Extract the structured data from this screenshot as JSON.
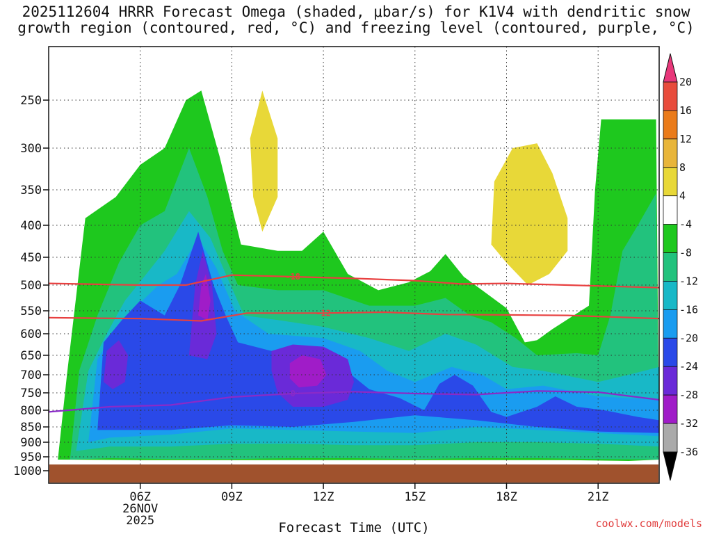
{
  "title": {
    "line1": "2025112604 HRRR Forecast Omega (shaded, μbar/s) for K1V4 with dendritic snow",
    "line2": "growth region (contoured, red, °C) and freezing level (contoured, purple, °C)"
  },
  "credit": "coolwx.com/models",
  "chart_data": {
    "type": "contour",
    "xlabel": "Forecast Time (UTC)",
    "ylabel": "",
    "x_ticks": [
      "06Z",
      "09Z",
      "12Z",
      "15Z",
      "18Z",
      "21Z"
    ],
    "x_tick_hours": [
      6,
      9,
      12,
      15,
      18,
      21
    ],
    "x_date_label": [
      "26NOV",
      "2025"
    ],
    "x_range_hours": [
      3,
      23
    ],
    "y_ticks": [
      250,
      300,
      350,
      400,
      450,
      500,
      550,
      600,
      650,
      700,
      750,
      800,
      850,
      900,
      950,
      1000
    ],
    "y_axis": "pressure (hPa), inverted",
    "y_range": [
      200,
      1010
    ],
    "surface_fill_color": "#a0522d",
    "grid": true,
    "colorbar": {
      "levels": [
        20,
        16,
        12,
        8,
        4,
        -4,
        -8,
        -12,
        -16,
        -20,
        -24,
        -28,
        -32,
        -36
      ],
      "colors": [
        "#e8377a",
        "#e84c3c",
        "#ea7b1a",
        "#e8b53a",
        "#e8d838",
        "#ffffff",
        "#1ec81e",
        "#22c27d",
        "#18b8c7",
        "#1a9cf0",
        "#2a49e8",
        "#6a2ad8",
        "#a01cc8",
        "#aaaaaa",
        "#000000"
      ]
    },
    "contours": [
      {
        "name": "-18",
        "color": "#e84040",
        "kind": "dendritic",
        "label": "-18",
        "points": [
          [
            3,
            497
          ],
          [
            6,
            500
          ],
          [
            7.5,
            500
          ],
          [
            9,
            482
          ],
          [
            11,
            485
          ],
          [
            13,
            488
          ],
          [
            15,
            492
          ],
          [
            16.5,
            498
          ],
          [
            18,
            497
          ],
          [
            20,
            500
          ],
          [
            23,
            505
          ]
        ]
      },
      {
        "name": "-12",
        "color": "#e84040",
        "kind": "dendritic",
        "label": "-12",
        "points": [
          [
            3,
            565
          ],
          [
            6,
            567
          ],
          [
            8,
            572
          ],
          [
            9.5,
            555
          ],
          [
            12,
            555
          ],
          [
            14,
            553
          ],
          [
            16,
            558
          ],
          [
            18,
            559
          ],
          [
            20,
            560
          ],
          [
            23,
            567
          ]
        ]
      },
      {
        "name": "0",
        "color": "#8a2ac8",
        "kind": "freezing",
        "label": "0",
        "points": [
          [
            3,
            805
          ],
          [
            5,
            790
          ],
          [
            7,
            785
          ],
          [
            9,
            762
          ],
          [
            11,
            752
          ],
          [
            13,
            747
          ],
          [
            15,
            752
          ],
          [
            17,
            755
          ],
          [
            19,
            745
          ],
          [
            21,
            748
          ],
          [
            23,
            770
          ]
        ]
      }
    ],
    "shaded_regions": [
      {
        "value": -4,
        "color": "#1ec81e",
        "points": [
          [
            3.3,
            960
          ],
          [
            3.6,
            700
          ],
          [
            4.2,
            390
          ],
          [
            5.2,
            360
          ],
          [
            6,
            320
          ],
          [
            6.8,
            300
          ],
          [
            7.5,
            250
          ],
          [
            8.0,
            240
          ],
          [
            8.6,
            310
          ],
          [
            9.3,
            430
          ],
          [
            10.5,
            440
          ],
          [
            11.3,
            440
          ],
          [
            12,
            410
          ],
          [
            12.8,
            480
          ],
          [
            13.8,
            510
          ],
          [
            14.8,
            495
          ],
          [
            15.5,
            475
          ],
          [
            16.0,
            445
          ],
          [
            16.6,
            485
          ],
          [
            17.2,
            510
          ],
          [
            18.0,
            545
          ],
          [
            18.6,
            620
          ],
          [
            19.0,
            615
          ],
          [
            19.5,
            590
          ],
          [
            20.2,
            560
          ],
          [
            20.7,
            540
          ],
          [
            20.9,
            350
          ],
          [
            21.1,
            270
          ],
          [
            22.0,
            270
          ],
          [
            22.9,
            270
          ],
          [
            23,
            960
          ],
          [
            22,
            965
          ],
          [
            20,
            962
          ],
          [
            18,
            962
          ],
          [
            16,
            962
          ],
          [
            14,
            962
          ],
          [
            12,
            962
          ],
          [
            10,
            962
          ],
          [
            8,
            962
          ],
          [
            6,
            962
          ]
        ]
      },
      {
        "value": -8,
        "color": "#22c27d",
        "points": [
          [
            3.7,
            960
          ],
          [
            4.0,
            690
          ],
          [
            4.6,
            560
          ],
          [
            5.3,
            460
          ],
          [
            6,
            400
          ],
          [
            6.8,
            380
          ],
          [
            7.6,
            300
          ],
          [
            8.2,
            360
          ],
          [
            8.7,
            440
          ],
          [
            9.2,
            500
          ],
          [
            10.5,
            510
          ],
          [
            12,
            510
          ],
          [
            13.5,
            540
          ],
          [
            15,
            540
          ],
          [
            16,
            525
          ],
          [
            16.8,
            560
          ],
          [
            17.5,
            575
          ],
          [
            18.3,
            610
          ],
          [
            19,
            650
          ],
          [
            20.3,
            645
          ],
          [
            21,
            650
          ],
          [
            21.4,
            560
          ],
          [
            21.8,
            440
          ],
          [
            22.3,
            400
          ],
          [
            22.9,
            355
          ],
          [
            23,
            960
          ],
          [
            21,
            958
          ],
          [
            19,
            955
          ],
          [
            17,
            955
          ],
          [
            15,
            958
          ],
          [
            13,
            955
          ],
          [
            11,
            955
          ],
          [
            9,
            958
          ],
          [
            7,
            958
          ],
          [
            5,
            955
          ]
        ]
      },
      {
        "value": -12,
        "color": "#18b8c7",
        "points": [
          [
            3.9,
            930
          ],
          [
            4.3,
            690
          ],
          [
            4.9,
            600
          ],
          [
            5.5,
            530
          ],
          [
            6.2,
            480
          ],
          [
            6.8,
            440
          ],
          [
            7.6,
            380
          ],
          [
            8.3,
            420
          ],
          [
            8.8,
            480
          ],
          [
            9.4,
            560
          ],
          [
            10.5,
            570
          ],
          [
            12,
            585
          ],
          [
            13.5,
            610
          ],
          [
            14.8,
            640
          ],
          [
            16.0,
            600
          ],
          [
            17,
            625
          ],
          [
            18.2,
            680
          ],
          [
            19.2,
            690
          ],
          [
            21,
            720
          ],
          [
            22,
            700
          ],
          [
            23,
            680
          ],
          [
            23,
            915
          ],
          [
            21,
            905
          ],
          [
            19,
            900
          ],
          [
            17,
            900
          ],
          [
            15,
            910
          ],
          [
            13,
            910
          ],
          [
            11,
            905
          ],
          [
            9,
            905
          ],
          [
            7,
            915
          ],
          [
            5,
            915
          ]
        ]
      },
      {
        "value": -16,
        "color": "#1a9cf0",
        "points": [
          [
            4.3,
            900
          ],
          [
            4.6,
            660
          ],
          [
            5.2,
            590
          ],
          [
            5.9,
            540
          ],
          [
            6.6,
            500
          ],
          [
            7.2,
            480
          ],
          [
            7.9,
            420
          ],
          [
            8.5,
            470
          ],
          [
            9.1,
            550
          ],
          [
            10.2,
            600
          ],
          [
            12.0,
            610
          ],
          [
            13.2,
            640
          ],
          [
            14.1,
            690
          ],
          [
            15.0,
            720
          ],
          [
            16.2,
            680
          ],
          [
            17.2,
            700
          ],
          [
            18,
            740
          ],
          [
            19.2,
            730
          ],
          [
            21,
            760
          ],
          [
            23,
            770
          ],
          [
            23,
            880
          ],
          [
            21,
            870
          ],
          [
            19,
            860
          ],
          [
            17,
            850
          ],
          [
            15,
            870
          ],
          [
            13,
            865
          ],
          [
            11,
            860
          ],
          [
            9,
            855
          ],
          [
            7,
            875
          ],
          [
            5,
            885
          ]
        ]
      },
      {
        "value": -20,
        "color": "#2a49e8",
        "points": [
          [
            4.6,
            860
          ],
          [
            4.8,
            620
          ],
          [
            5.4,
            570
          ],
          [
            6.0,
            530
          ],
          [
            6.8,
            560
          ],
          [
            7.3,
            500
          ],
          [
            7.9,
            410
          ],
          [
            8.4,
            500
          ],
          [
            8.8,
            560
          ],
          [
            9.2,
            620
          ],
          [
            10.3,
            640
          ],
          [
            11.5,
            650
          ],
          [
            12.6,
            680
          ],
          [
            13.5,
            740
          ],
          [
            14.5,
            765
          ],
          [
            15.3,
            800
          ],
          [
            15.8,
            725
          ],
          [
            16.3,
            700
          ],
          [
            16.9,
            730
          ],
          [
            17.5,
            805
          ],
          [
            18.0,
            820
          ],
          [
            19,
            790
          ],
          [
            19.6,
            760
          ],
          [
            20.3,
            790
          ],
          [
            21.2,
            800
          ],
          [
            22.3,
            820
          ],
          [
            23,
            830
          ],
          [
            23,
            870
          ],
          [
            21,
            865
          ],
          [
            19,
            850
          ],
          [
            17,
            830
          ],
          [
            15,
            815
          ],
          [
            13,
            835
          ],
          [
            11,
            850
          ],
          [
            9,
            845
          ],
          [
            7,
            860
          ],
          [
            5,
            860
          ]
        ]
      },
      {
        "value": -24,
        "color": "#6a2ad8",
        "points": [
          [
            4.8,
            720
          ],
          [
            4.9,
            640
          ],
          [
            5.3,
            615
          ],
          [
            5.6,
            650
          ],
          [
            5.5,
            720
          ],
          [
            5.1,
            740
          ]
        ]
      },
      {
        "value": -24,
        "color": "#6a2ad8",
        "points": [
          [
            7.6,
            650
          ],
          [
            7.8,
            500
          ],
          [
            8.05,
            440
          ],
          [
            8.35,
            500
          ],
          [
            8.5,
            600
          ],
          [
            8.2,
            660
          ]
        ]
      },
      {
        "value": -24,
        "color": "#6a2ad8",
        "points": [
          [
            10.3,
            640
          ],
          [
            11.0,
            625
          ],
          [
            12.0,
            630
          ],
          [
            12.8,
            660
          ],
          [
            13.0,
            720
          ],
          [
            12.8,
            770
          ],
          [
            12.0,
            790
          ],
          [
            11.0,
            790
          ],
          [
            10.5,
            750
          ],
          [
            10.3,
            690
          ]
        ]
      },
      {
        "value": -28,
        "color": "#a01cc8",
        "points": [
          [
            10.9,
            670
          ],
          [
            11.3,
            650
          ],
          [
            11.9,
            660
          ],
          [
            12.1,
            700
          ],
          [
            11.8,
            730
          ],
          [
            11.2,
            735
          ],
          [
            10.9,
            710
          ]
        ]
      },
      {
        "value": -28,
        "color": "#a01cc8",
        "points": [
          [
            7.9,
            560
          ],
          [
            8.0,
            500
          ],
          [
            8.15,
            480
          ],
          [
            8.3,
            530
          ],
          [
            8.2,
            570
          ]
        ]
      },
      {
        "value": 4,
        "color": "#e8d838",
        "points": [
          [
            9.7,
            360
          ],
          [
            9.6,
            290
          ],
          [
            10.0,
            240
          ],
          [
            10.5,
            290
          ],
          [
            10.5,
            360
          ],
          [
            10.0,
            410
          ]
        ]
      },
      {
        "value": 4,
        "color": "#e8d838",
        "points": [
          [
            17.5,
            430
          ],
          [
            17.6,
            340
          ],
          [
            18.2,
            300
          ],
          [
            19.0,
            295
          ],
          [
            19.5,
            330
          ],
          [
            20.0,
            390
          ],
          [
            20.0,
            440
          ],
          [
            19.4,
            480
          ],
          [
            18.7,
            500
          ],
          [
            18.0,
            460
          ]
        ]
      }
    ]
  }
}
